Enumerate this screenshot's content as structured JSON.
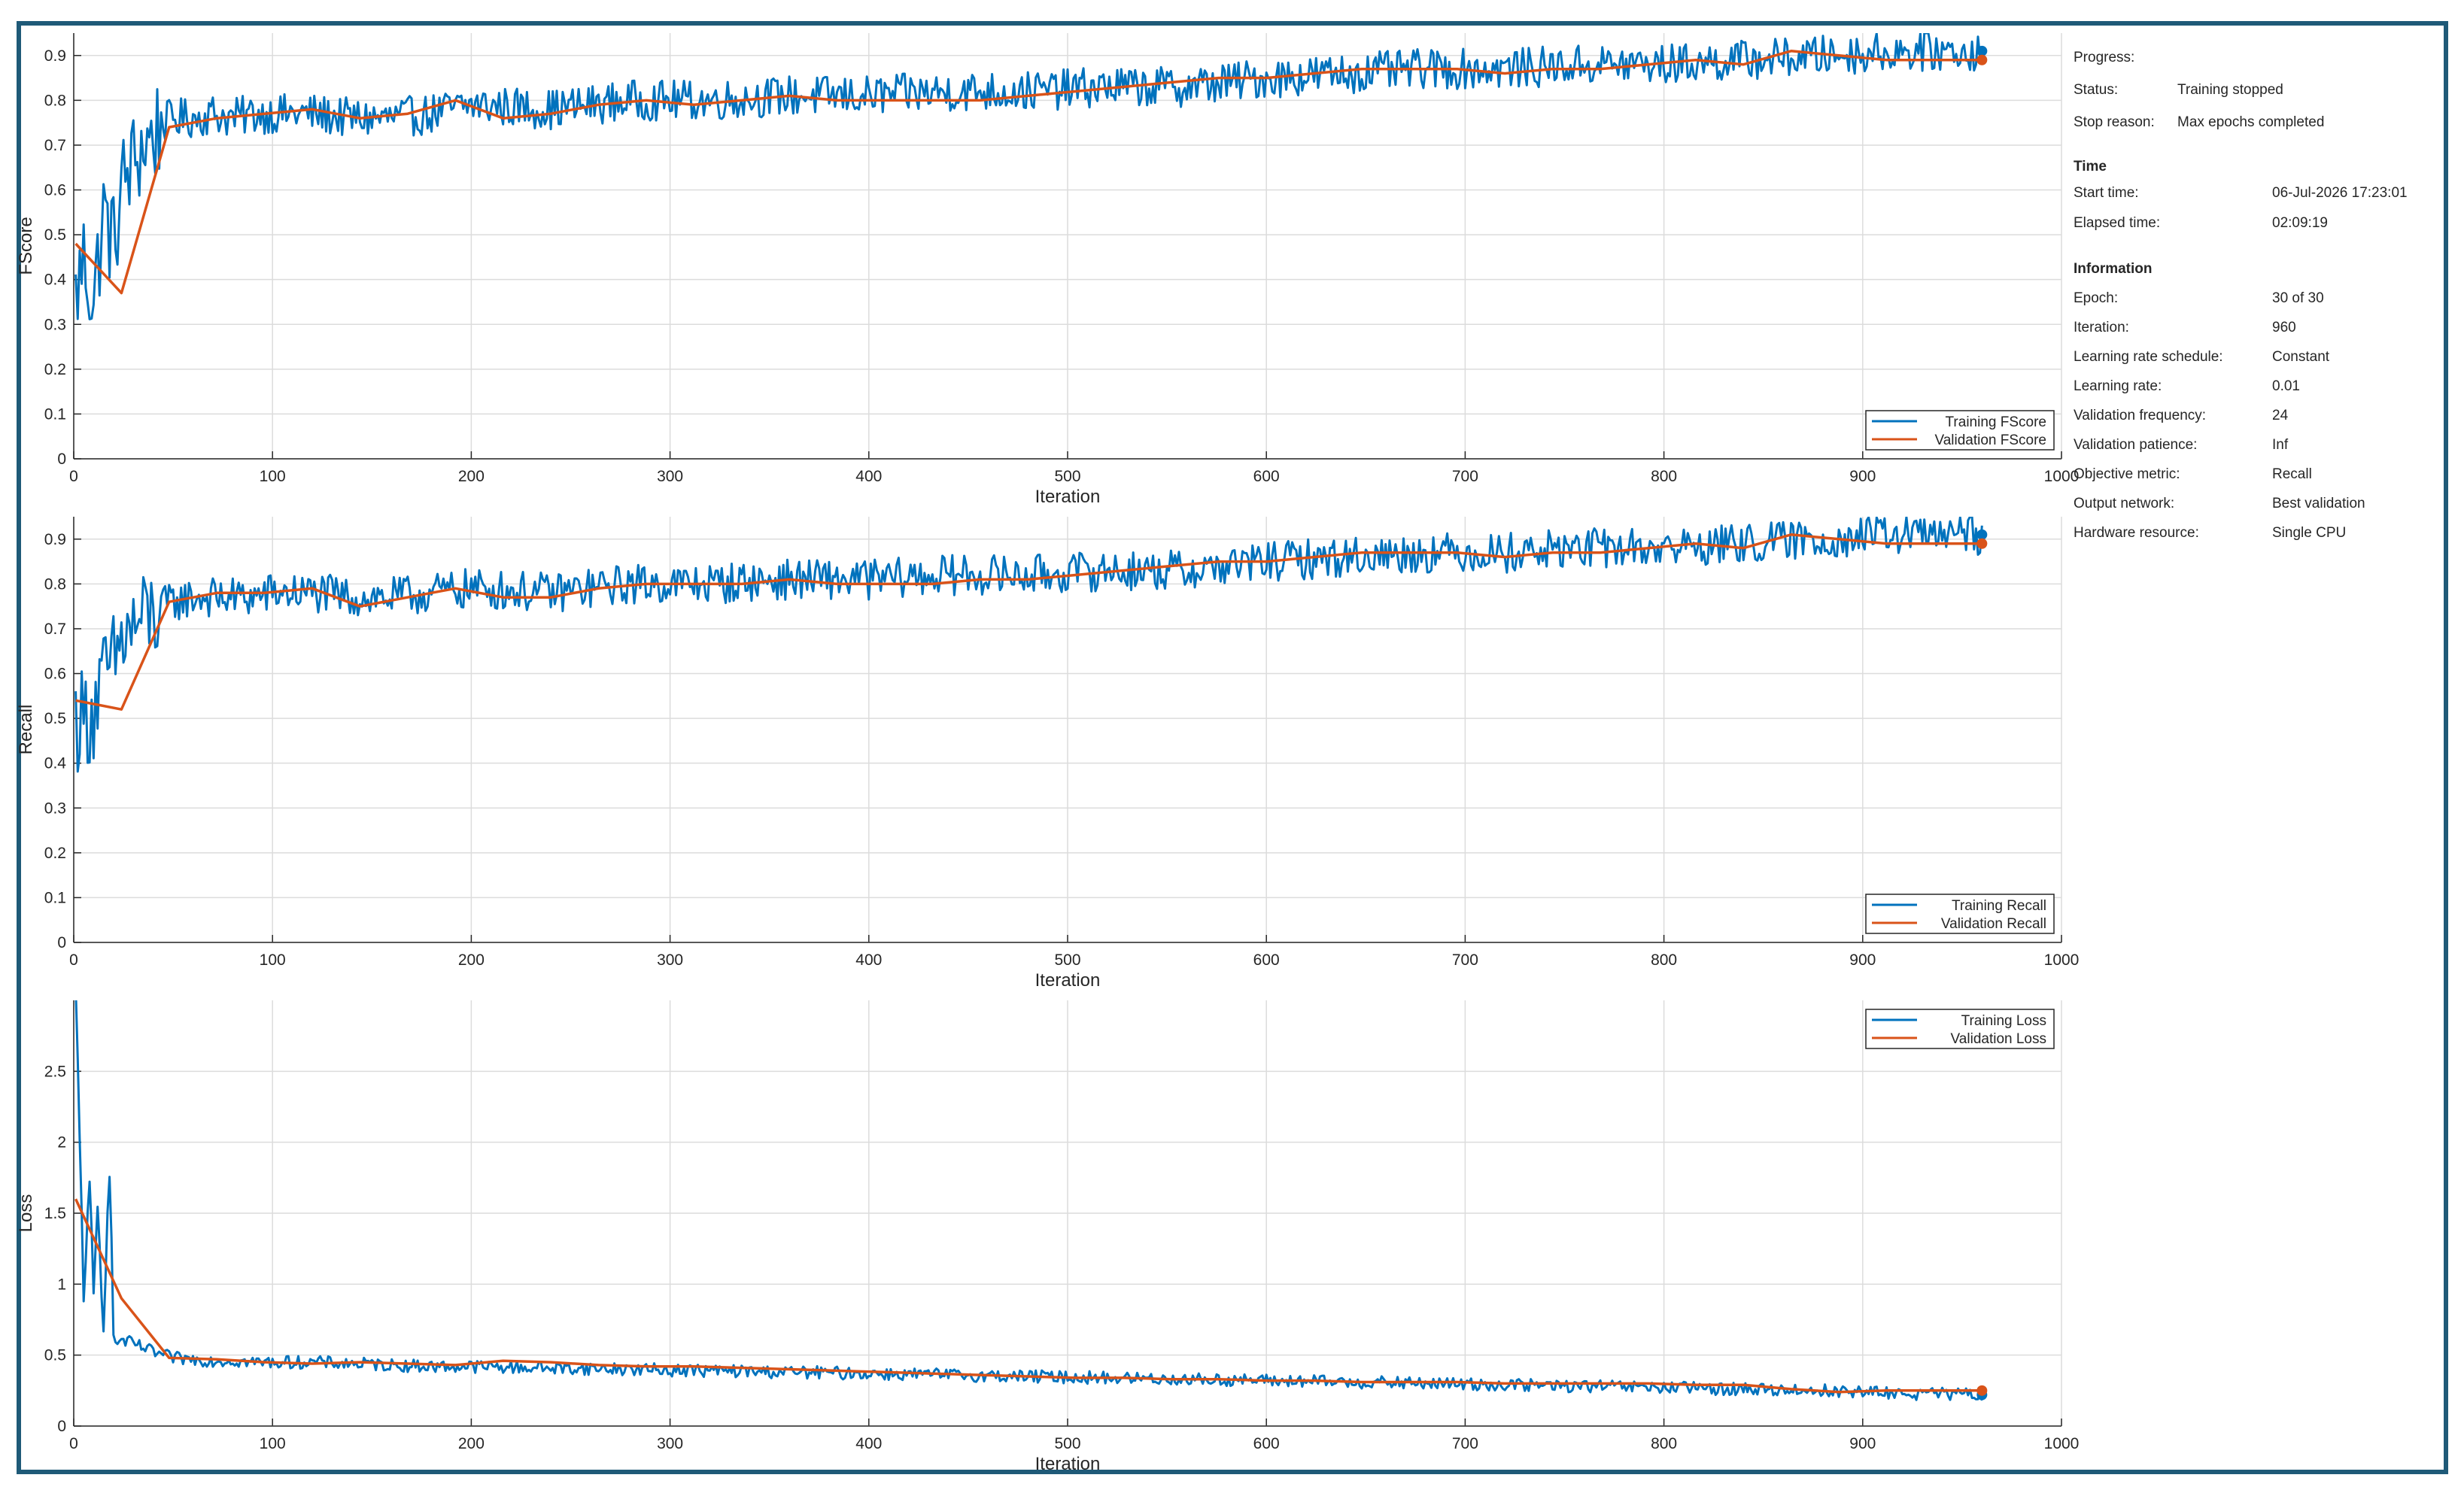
{
  "colors": {
    "training": "#0072BD",
    "validation": "#D95319",
    "frame": "#1f5a78",
    "grid": "#dcdcdc",
    "axis": "#262626"
  },
  "info": {
    "progress_label": "Progress:",
    "status_label": "Status:",
    "status_value": "Training stopped",
    "stop_reason_label": "Stop reason:",
    "stop_reason_value": "Max epochs completed",
    "time_header": "Time",
    "start_time_label": "Start time:",
    "start_time_value": "06-Jul-2026 17:23:01",
    "elapsed_label": "Elapsed time:",
    "elapsed_value": "02:09:19",
    "information_header": "Information",
    "epoch_label": "Epoch:",
    "epoch_value": "30 of 30",
    "iteration_label": "Iteration:",
    "iteration_value": "960",
    "lr_schedule_label": "Learning rate schedule:",
    "lr_schedule_value": "Constant",
    "lr_label": "Learning rate:",
    "lr_value": "0.01",
    "val_freq_label": "Validation frequency:",
    "val_freq_value": "24",
    "val_patience_label": "Validation patience:",
    "val_patience_value": "Inf",
    "objective_label": "Objective metric:",
    "objective_value": "Recall",
    "output_label": "Output network:",
    "output_value": "Best validation",
    "hardware_label": "Hardware resource:",
    "hardware_value": "Single CPU"
  },
  "chart_data": [
    {
      "type": "line",
      "xlabel": "Iteration",
      "ylabel": "FScore",
      "xlim": [
        0,
        1000
      ],
      "ylim": [
        0,
        0.95
      ],
      "xticks": [
        "0",
        "100",
        "200",
        "300",
        "400",
        "500",
        "600",
        "700",
        "800",
        "900",
        "1000"
      ],
      "yticks": [
        "0",
        "0.1",
        "0.2",
        "0.3",
        "0.4",
        "0.5",
        "0.6",
        "0.7",
        "0.8",
        "0.9"
      ],
      "ytick_values": [
        0,
        0.1,
        0.2,
        0.3,
        0.4,
        0.5,
        0.6,
        0.7,
        0.8,
        0.9
      ],
      "legend": {
        "position": "bottom-right"
      },
      "series": [
        {
          "name": "Training FScore",
          "x": [
            1,
            5,
            10,
            15,
            20,
            25,
            30,
            35,
            40,
            45,
            50,
            60,
            70,
            80,
            90,
            100,
            120,
            140,
            160,
            180,
            200,
            240,
            280,
            320,
            360,
            400,
            440,
            480,
            520,
            560,
            600,
            640,
            680,
            720,
            760,
            800,
            840,
            880,
            920,
            960
          ],
          "y": [
            0.36,
            0.45,
            0.35,
            0.55,
            0.48,
            0.62,
            0.66,
            0.7,
            0.72,
            0.75,
            0.76,
            0.76,
            0.77,
            0.76,
            0.77,
            0.77,
            0.77,
            0.76,
            0.76,
            0.77,
            0.79,
            0.78,
            0.8,
            0.8,
            0.81,
            0.81,
            0.82,
            0.82,
            0.83,
            0.83,
            0.85,
            0.86,
            0.87,
            0.87,
            0.88,
            0.88,
            0.89,
            0.9,
            0.91,
            0.91
          ]
        },
        {
          "name": "Validation FScore",
          "x": [
            1,
            24,
            48,
            72,
            96,
            120,
            144,
            168,
            192,
            216,
            240,
            264,
            288,
            312,
            336,
            360,
            384,
            408,
            432,
            456,
            480,
            504,
            528,
            552,
            576,
            600,
            624,
            648,
            672,
            696,
            720,
            744,
            768,
            792,
            816,
            840,
            864,
            888,
            912,
            936,
            960
          ],
          "y": [
            0.48,
            0.37,
            0.74,
            0.76,
            0.77,
            0.78,
            0.76,
            0.77,
            0.8,
            0.76,
            0.77,
            0.79,
            0.8,
            0.79,
            0.8,
            0.81,
            0.8,
            0.8,
            0.8,
            0.8,
            0.81,
            0.82,
            0.83,
            0.84,
            0.85,
            0.85,
            0.86,
            0.87,
            0.87,
            0.87,
            0.86,
            0.87,
            0.87,
            0.88,
            0.89,
            0.88,
            0.91,
            0.9,
            0.89,
            0.89,
            0.89
          ]
        }
      ]
    },
    {
      "type": "line",
      "xlabel": "Iteration",
      "ylabel": "Recall",
      "xlim": [
        0,
        1000
      ],
      "ylim": [
        0,
        0.95
      ],
      "xticks": [
        "0",
        "100",
        "200",
        "300",
        "400",
        "500",
        "600",
        "700",
        "800",
        "900",
        "1000"
      ],
      "yticks": [
        "0",
        "0.1",
        "0.2",
        "0.3",
        "0.4",
        "0.5",
        "0.6",
        "0.7",
        "0.8",
        "0.9"
      ],
      "ytick_values": [
        0,
        0.1,
        0.2,
        0.3,
        0.4,
        0.5,
        0.6,
        0.7,
        0.8,
        0.9
      ],
      "legend": {
        "position": "bottom-right"
      },
      "series": [
        {
          "name": "Training Recall",
          "x": [
            1,
            5,
            10,
            15,
            20,
            25,
            30,
            35,
            40,
            45,
            50,
            60,
            70,
            80,
            90,
            100,
            120,
            140,
            160,
            180,
            200,
            240,
            280,
            320,
            360,
            400,
            440,
            480,
            520,
            560,
            600,
            640,
            680,
            720,
            760,
            800,
            840,
            880,
            920,
            960
          ],
          "y": [
            0.5,
            0.5,
            0.52,
            0.58,
            0.62,
            0.68,
            0.7,
            0.72,
            0.73,
            0.75,
            0.76,
            0.77,
            0.77,
            0.77,
            0.77,
            0.78,
            0.78,
            0.77,
            0.77,
            0.78,
            0.79,
            0.78,
            0.8,
            0.8,
            0.81,
            0.81,
            0.82,
            0.82,
            0.83,
            0.83,
            0.85,
            0.86,
            0.87,
            0.87,
            0.88,
            0.88,
            0.89,
            0.9,
            0.91,
            0.91
          ]
        },
        {
          "name": "Validation Recall",
          "x": [
            1,
            24,
            48,
            72,
            96,
            120,
            144,
            168,
            192,
            216,
            240,
            264,
            288,
            312,
            336,
            360,
            384,
            408,
            432,
            456,
            480,
            504,
            528,
            552,
            576,
            600,
            624,
            648,
            672,
            696,
            720,
            744,
            768,
            792,
            816,
            840,
            864,
            888,
            912,
            936,
            960
          ],
          "y": [
            0.54,
            0.52,
            0.76,
            0.78,
            0.78,
            0.79,
            0.75,
            0.77,
            0.79,
            0.77,
            0.77,
            0.79,
            0.8,
            0.8,
            0.8,
            0.81,
            0.8,
            0.8,
            0.8,
            0.81,
            0.81,
            0.82,
            0.83,
            0.84,
            0.85,
            0.85,
            0.86,
            0.87,
            0.87,
            0.87,
            0.86,
            0.87,
            0.87,
            0.88,
            0.89,
            0.88,
            0.91,
            0.9,
            0.89,
            0.89,
            0.89
          ]
        }
      ]
    },
    {
      "type": "line",
      "xlabel": "Iteration",
      "ylabel": "Loss",
      "xlim": [
        0,
        1000
      ],
      "ylim": [
        0,
        3.0
      ],
      "xticks": [
        "0",
        "100",
        "200",
        "300",
        "400",
        "500",
        "600",
        "700",
        "800",
        "900",
        "1000"
      ],
      "yticks": [
        "0",
        "0.5",
        "1",
        "1.5",
        "2",
        "2.5"
      ],
      "ytick_values": [
        0,
        0.5,
        1,
        1.5,
        2,
        2.5
      ],
      "legend": {
        "position": "top-right"
      },
      "series": [
        {
          "name": "Training Loss",
          "x": [
            1,
            3,
            5,
            8,
            10,
            12,
            15,
            18,
            20,
            25,
            30,
            35,
            40,
            45,
            50,
            60,
            70,
            80,
            90,
            100,
            120,
            140,
            160,
            180,
            200,
            240,
            280,
            320,
            360,
            400,
            440,
            480,
            520,
            560,
            600,
            640,
            680,
            720,
            760,
            800,
            840,
            880,
            920,
            960
          ],
          "y": [
            3.0,
            2.0,
            1.0,
            1.6,
            0.9,
            1.5,
            0.8,
            1.9,
            0.6,
            0.6,
            0.58,
            0.55,
            0.52,
            0.5,
            0.48,
            0.47,
            0.46,
            0.46,
            0.45,
            0.45,
            0.45,
            0.44,
            0.43,
            0.42,
            0.42,
            0.41,
            0.4,
            0.39,
            0.38,
            0.37,
            0.36,
            0.35,
            0.34,
            0.33,
            0.32,
            0.31,
            0.3,
            0.29,
            0.28,
            0.27,
            0.26,
            0.25,
            0.23,
            0.22
          ]
        },
        {
          "name": "Validation Loss",
          "x": [
            1,
            24,
            48,
            72,
            96,
            120,
            144,
            168,
            192,
            216,
            240,
            264,
            288,
            312,
            336,
            360,
            384,
            408,
            432,
            456,
            480,
            504,
            528,
            552,
            576,
            600,
            624,
            648,
            672,
            696,
            720,
            744,
            768,
            792,
            816,
            840,
            864,
            888,
            912,
            936,
            960
          ],
          "y": [
            1.6,
            0.9,
            0.48,
            0.47,
            0.45,
            0.44,
            0.45,
            0.44,
            0.43,
            0.46,
            0.45,
            0.43,
            0.42,
            0.42,
            0.41,
            0.4,
            0.39,
            0.38,
            0.37,
            0.36,
            0.35,
            0.34,
            0.34,
            0.33,
            0.33,
            0.32,
            0.32,
            0.31,
            0.31,
            0.31,
            0.3,
            0.3,
            0.3,
            0.3,
            0.29,
            0.29,
            0.26,
            0.24,
            0.25,
            0.25,
            0.25
          ]
        }
      ]
    }
  ]
}
